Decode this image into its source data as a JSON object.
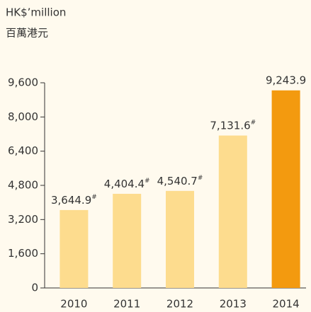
{
  "chart_data": {
    "type": "bar",
    "y_label": "HK$’million",
    "y_label_local": "百萬港元",
    "categories": [
      "2010",
      "2011",
      "2012",
      "2013",
      "2014"
    ],
    "values": [
      3644.9,
      4404.4,
      4540.7,
      7131.6,
      9243.9
    ],
    "value_labels": [
      "3,644.9#",
      "4,404.4#",
      "4,540.7#",
      "7,131.6#",
      "9,243.9"
    ],
    "colors": [
      "#fddc8e",
      "#fddc8e",
      "#fddc8e",
      "#fddc8e",
      "#f39a0f"
    ],
    "ylim": [
      0,
      9600
    ],
    "yticks": [
      0,
      {
        "value": 1600,
        "label": "1,600"
      },
      {
        "value": 3200,
        "label": "3,200"
      },
      {
        "value": 4800,
        "label": "4,800"
      },
      {
        "value": 6400,
        "label": "6,400"
      },
      {
        "value": 8000,
        "label": "8,000"
      },
      {
        "value": 9600,
        "label": "9,600"
      }
    ],
    "grid": false
  }
}
